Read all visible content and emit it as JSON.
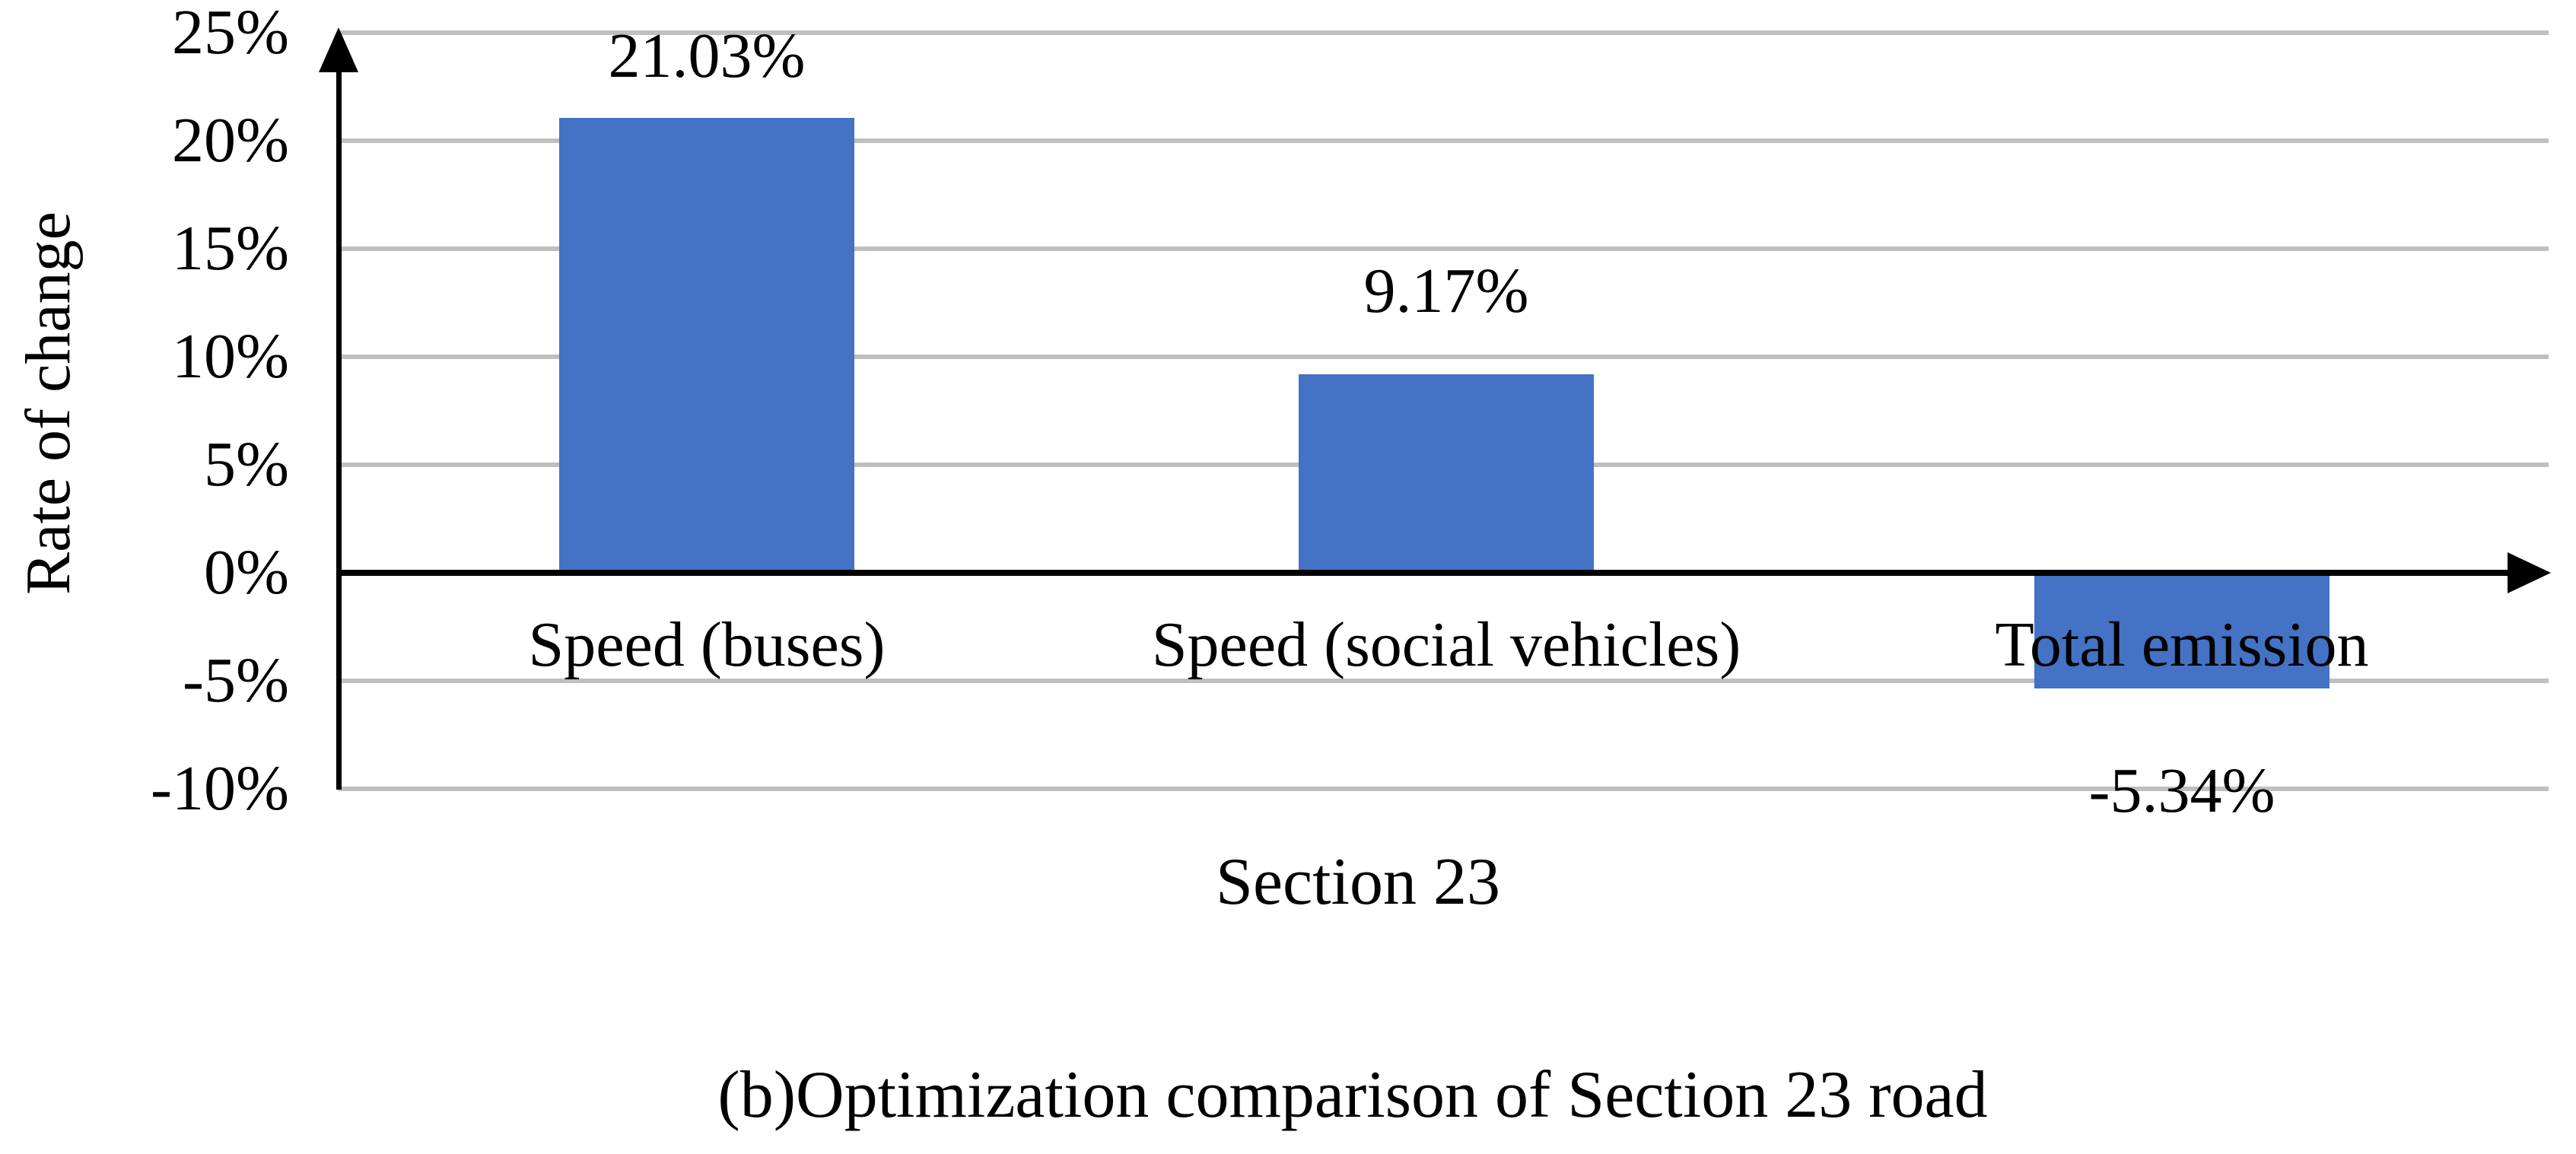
{
  "chart_data": {
    "type": "bar",
    "title": "",
    "ylabel": "Rate of change",
    "xlabel": "Section 23",
    "caption": "(b)Optimization comparison of Section 23 road",
    "categories": [
      "Speed (buses)",
      "Speed (social vehicles)",
      "Total emission"
    ],
    "values": [
      21.03,
      9.17,
      -5.34
    ],
    "data_labels": [
      "21.03%",
      "9.17%",
      "-5.34%"
    ],
    "y_ticks": [
      {
        "value": 25,
        "label": "25%"
      },
      {
        "value": 20,
        "label": "20%"
      },
      {
        "value": 15,
        "label": "15%"
      },
      {
        "value": 10,
        "label": "10%"
      },
      {
        "value": 5,
        "label": "5%"
      },
      {
        "value": 0,
        "label": "0%"
      },
      {
        "value": -5,
        "label": "-5%"
      },
      {
        "value": -10,
        "label": "-10%"
      }
    ],
    "ylim": [
      -10,
      25
    ],
    "grid": true,
    "legend": "none",
    "colors": {
      "bar": "#4472C4",
      "gridline": "#BFBFBF",
      "axis": "#000000",
      "text": "#000000",
      "background": "#FFFFFF"
    }
  }
}
